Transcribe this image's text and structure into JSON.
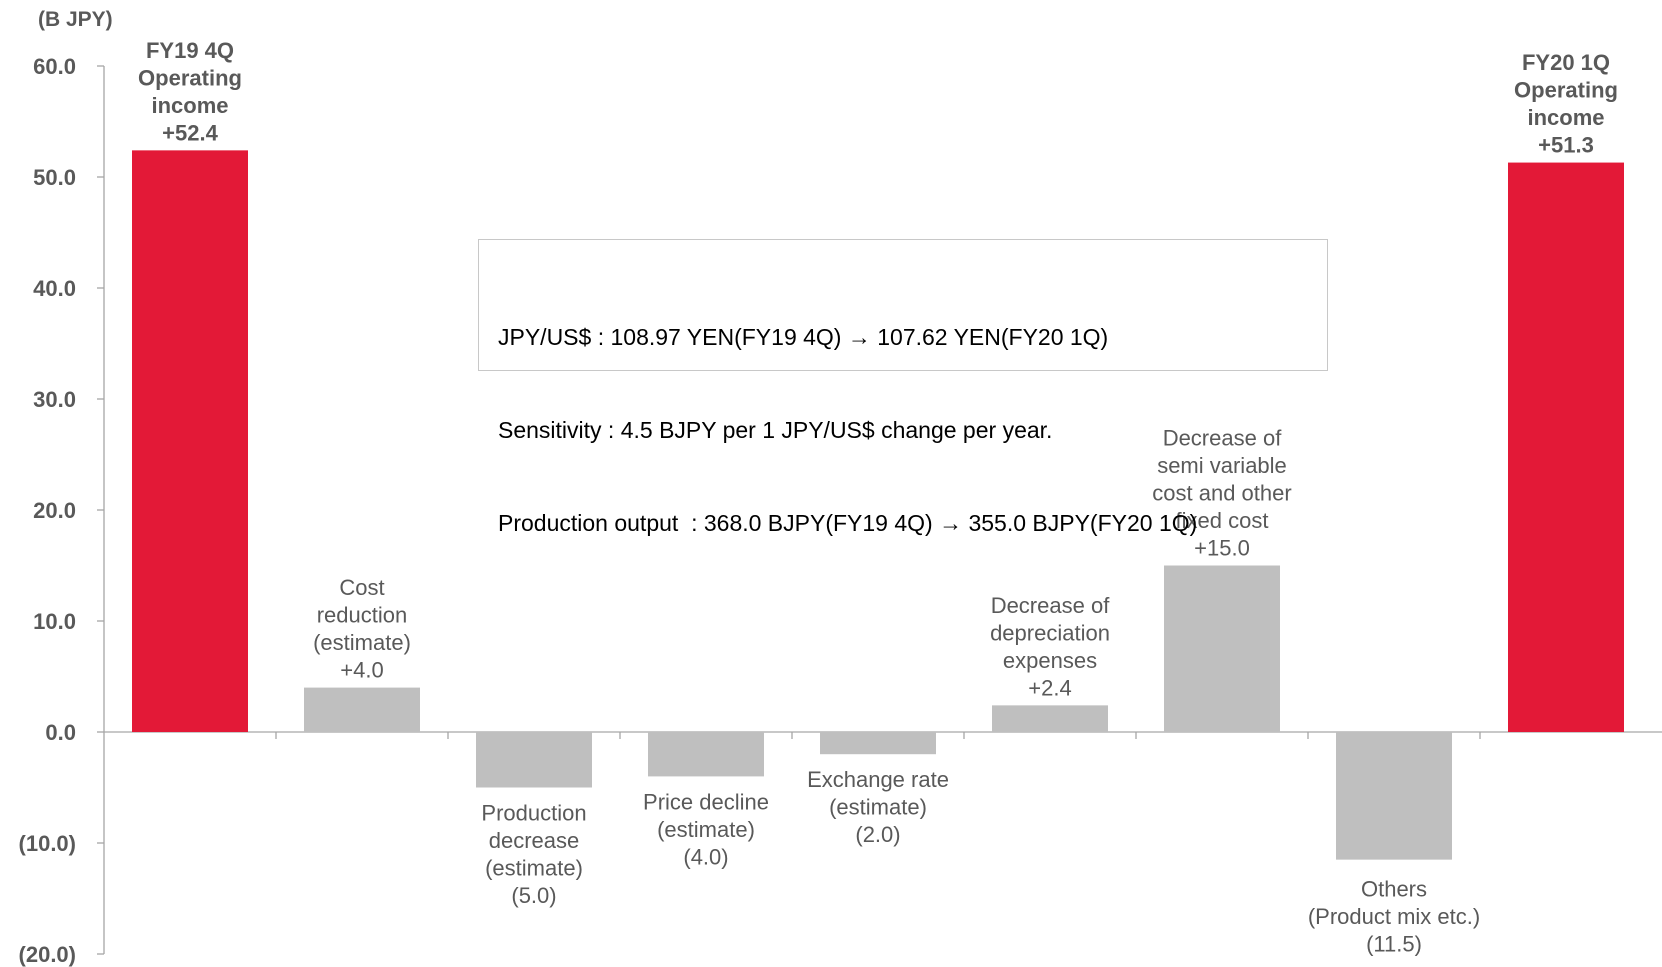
{
  "chart_data": {
    "type": "bar",
    "unit_label": "(B JPY)",
    "ylim": [
      -20,
      60
    ],
    "yticks": [
      "60.0",
      "50.0",
      "40.0",
      "30.0",
      "20.0",
      "10.0",
      "0.0",
      "(10.0)",
      "(20.0)"
    ],
    "ytick_values": [
      60,
      50,
      40,
      30,
      20,
      10,
      0,
      -10,
      -20
    ],
    "grid": false,
    "bars": [
      {
        "label": [
          "FY19 4Q",
          "Operating",
          "income",
          "+52.4"
        ],
        "value": 52.4,
        "kind": "total"
      },
      {
        "label": [
          "Cost",
          "reduction",
          "(estimate)",
          "+4.0"
        ],
        "value": 4.0,
        "kind": "delta"
      },
      {
        "label": [
          "Production",
          "decrease",
          "(estimate)",
          "(5.0)"
        ],
        "value": -5.0,
        "kind": "delta"
      },
      {
        "label": [
          "Price decline",
          "(estimate)",
          "(4.0)"
        ],
        "value": -4.0,
        "kind": "delta"
      },
      {
        "label": [
          "Exchange rate",
          "(estimate)",
          "(2.0)"
        ],
        "value": -2.0,
        "kind": "delta"
      },
      {
        "label": [
          "Decrease of",
          "depreciation",
          "expenses",
          "+2.4"
        ],
        "value": 2.4,
        "kind": "delta"
      },
      {
        "label": [
          "Decrease of",
          "semi variable",
          "cost and other",
          "fixed cost",
          "+15.0"
        ],
        "value": 15.0,
        "kind": "delta"
      },
      {
        "label": [
          "Others",
          "(Product mix etc.)",
          "(11.5)"
        ],
        "value": -11.5,
        "kind": "delta"
      },
      {
        "label": [
          "FY20 1Q",
          "Operating",
          "income",
          "+51.3"
        ],
        "value": 51.3,
        "kind": "total"
      }
    ],
    "annotation": [
      "JPY/US$ : 108.97 YEN(FY19 4Q) → 107.62 YEN(FY20 1Q)",
      "Sensitivity : 4.5 BJPY per 1 JPY/US$ change per year.",
      "Production output  : 368.0 BJPY(FY19 4Q) → 355.0 BJPY(FY20 1Q)"
    ]
  },
  "colors": {
    "total": "#e31937",
    "delta": "#bfbfbf",
    "axis": "#a6a6a6",
    "tick_text": "#595959",
    "total_label": "#595959",
    "delta_label": "#595959"
  }
}
